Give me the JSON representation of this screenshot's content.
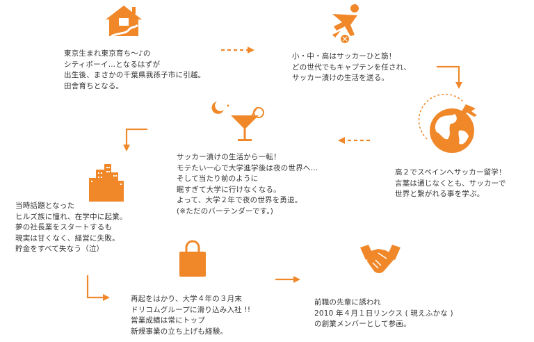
{
  "accent": "#f0882a",
  "steps": [
    {
      "icon": "house-icon",
      "text": "東京生まれ東京育ち〜♪の\nシティボーイ…となるはずが\n出生後、まさかの千葉県我孫子市に引越。\n田舎育ちとなる。"
    },
    {
      "icon": "soccer-player-icon",
      "text": "小・中・高はサッカーひと筋！\nどの世代でもキャプテンを任され、\nサッカー漬けの生活を送る。"
    },
    {
      "icon": "globe-plane-icon",
      "text": "高２でスペインへサッカー留学！\n言葉は通じなくとも、サッカーで\n世界と繋がれる事を学ぶ。"
    },
    {
      "icon": "cocktail-moon-icon",
      "text": "サッカー漬けの生活から一転！\nモテたい一心で大学進学後は夜の世界へ…\nそして当たり前のように\n眠すぎて大学に行けなくなる。\nよって、大学２年で夜の世界を勇退。\n(※ただのバーテンダーです。)"
    },
    {
      "icon": "city-buildings-icon",
      "text": "当時話題となった\nヒルズ族に憧れ、在学中に起業。\n夢の社長業をスタートするも\n現実は甘くなく、経営に失敗。\n貯金をすべて失なう（泣）"
    },
    {
      "icon": "shopping-bag-icon",
      "text": "再起をはかり、大学４年の３月末\nドリコムグループに滑り込み入社 !!\n営業成績は常にトップ\n新規事業の立ち上げも経験。"
    },
    {
      "icon": "handshake-icon",
      "text": "前職の先輩に誘われ\n2010 年４月１日リンクス ( 現えふかな )\nの創業メンバーとして参画。"
    }
  ]
}
